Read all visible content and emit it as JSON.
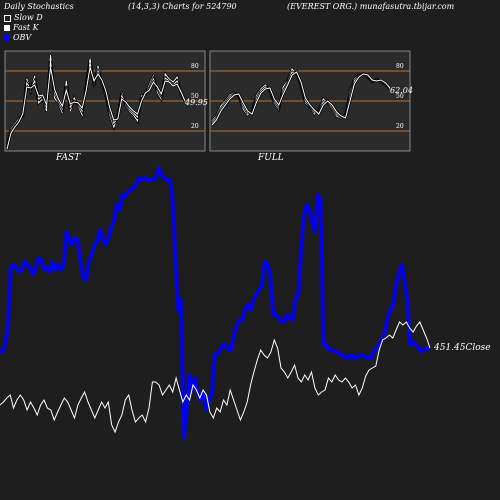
{
  "header": {
    "left": "Daily Stochastics",
    "params": "(14,3,3) Charts for 524790",
    "right": "(EVEREST ORG.) munafasutra.tbijar.com"
  },
  "legend": [
    {
      "label": "Slow  D",
      "swatch": "slow"
    },
    {
      "label": "Fast K",
      "swatch": "fast"
    },
    {
      "label": "OBV",
      "swatch": "obv"
    }
  ],
  "colors": {
    "background": "#1e1e1e",
    "panel": "#2b2b2b",
    "level_line": "#b87333",
    "stoch_line": "#ffffff",
    "obv": "#0000ff",
    "price": "#ffffff"
  },
  "chart_data": [
    {
      "type": "line",
      "panel_label": "FAST",
      "last_value_label": "49.95",
      "levels": [
        20,
        50,
        80
      ],
      "level_labels": [
        "80",
        "50",
        "20"
      ],
      "ylim": [
        0,
        100
      ],
      "series": [
        {
          "values": [
            5,
            22,
            27,
            32,
            35,
            72,
            60,
            75,
            48,
            52,
            40,
            96,
            53,
            48,
            38,
            70,
            40,
            53,
            45,
            36,
            67,
            92,
            65,
            85,
            68,
            55,
            36,
            24,
            35,
            58,
            46,
            40,
            36,
            30,
            55,
            57,
            66,
            75,
            59,
            52,
            77,
            72,
            69,
            74,
            56,
            50
          ]
        },
        {
          "values": [
            3,
            20,
            25,
            30,
            36,
            68,
            62,
            70,
            52,
            55,
            43,
            90,
            58,
            50,
            42,
            65,
            44,
            50,
            47,
            40,
            63,
            88,
            68,
            80,
            70,
            58,
            40,
            28,
            33,
            55,
            48,
            42,
            38,
            34,
            52,
            58,
            63,
            72,
            62,
            55,
            73,
            70,
            66,
            70,
            58,
            50
          ]
        },
        {
          "values": [
            2,
            18,
            24,
            29,
            37,
            64,
            63,
            66,
            55,
            56,
            46,
            84,
            62,
            52,
            45,
            61,
            47,
            49,
            48,
            43,
            60,
            84,
            70,
            77,
            71,
            60,
            43,
            31,
            32,
            52,
            49,
            44,
            40,
            37,
            50,
            58,
            61,
            69,
            64,
            57,
            70,
            69,
            65,
            67,
            59,
            50
          ]
        }
      ]
    },
    {
      "type": "line",
      "panel_label": "FULL",
      "last_value_label": "62.04",
      "levels": [
        20,
        50,
        80
      ],
      "level_labels": [
        "80",
        "50",
        "20"
      ],
      "ylim": [
        0,
        100
      ],
      "series": [
        {
          "values": [
            30,
            35,
            45,
            50,
            56,
            58,
            55,
            42,
            36,
            40,
            55,
            62,
            66,
            60,
            48,
            42,
            64,
            70,
            82,
            77,
            65,
            48,
            44,
            37,
            40,
            52,
            48,
            42,
            35,
            33,
            36,
            58,
            72,
            76,
            76,
            74,
            69,
            72,
            69,
            66,
            62
          ]
        },
        {
          "values": [
            28,
            33,
            42,
            48,
            54,
            57,
            56,
            45,
            38,
            38,
            52,
            60,
            64,
            62,
            50,
            44,
            60,
            68,
            79,
            78,
            67,
            50,
            45,
            39,
            38,
            49,
            49,
            44,
            37,
            34,
            34,
            54,
            70,
            75,
            77,
            75,
            70,
            71,
            70,
            67,
            62
          ]
        },
        {
          "values": [
            26,
            31,
            40,
            46,
            52,
            56,
            57,
            48,
            40,
            37,
            49,
            58,
            62,
            63,
            52,
            46,
            57,
            66,
            76,
            79,
            69,
            53,
            46,
            41,
            37,
            46,
            50,
            46,
            39,
            35,
            33,
            50,
            67,
            74,
            77,
            76,
            71,
            70,
            71,
            68,
            63
          ]
        }
      ]
    },
    {
      "type": "line",
      "close_label": "451.45Close",
      "series": [
        {
          "name": "OBV",
          "values": [
            352,
            352,
            345,
            325,
            268,
            265,
            268,
            272,
            270,
            262,
            265,
            268,
            275,
            267,
            258,
            260,
            270,
            268,
            272,
            262,
            270,
            265,
            270,
            265,
            232,
            240,
            245,
            238,
            240,
            262,
            278,
            280,
            262,
            255,
            245,
            242,
            230,
            240,
            245,
            238,
            228,
            220,
            205,
            210,
            195,
            197,
            192,
            190,
            188,
            185,
            178,
            180,
            178,
            180,
            180,
            180,
            178,
            168,
            175,
            178,
            180,
            180,
            200,
            258,
            312,
            300,
            438,
            410,
            375,
            390,
            378,
            395,
            400,
            392,
            410,
            400,
            395,
            355,
            355,
            350,
            345,
            345,
            350,
            350,
            335,
            325,
            320,
            320,
            310,
            305,
            310,
            300,
            295,
            290,
            285,
            262,
            265,
            275,
            315,
            315,
            318,
            322,
            322,
            315,
            318,
            320,
            298,
            295,
            250,
            215,
            205,
            210,
            222,
            232,
            195,
            200,
            345,
            345,
            350,
            350,
            352,
            352,
            355,
            355,
            358,
            358,
            355,
            358,
            358,
            355,
            355,
            358,
            358,
            358,
            352,
            348,
            345,
            340,
            332,
            318,
            310,
            305,
            285,
            275,
            265,
            280,
            300,
            345,
            342,
            345,
            348,
            352,
            350,
            348,
            350
          ]
        },
        {
          "name": "Close",
          "values": [
            405,
            402,
            398,
            395,
            408,
            400,
            395,
            400,
            410,
            402,
            408,
            415,
            405,
            400,
            408,
            410,
            420,
            412,
            405,
            398,
            402,
            410,
            418,
            405,
            398,
            392,
            402,
            410,
            418,
            410,
            402,
            408,
            402,
            425,
            432,
            422,
            415,
            400,
            395,
            410,
            422,
            418,
            415,
            422,
            408,
            382,
            382,
            385,
            395,
            390,
            385,
            392,
            378,
            390,
            402,
            395,
            400,
            385,
            390,
            398,
            390,
            395,
            412,
            418,
            408,
            412,
            400,
            405,
            390,
            400,
            410,
            420,
            412,
            402,
            385,
            372,
            360,
            350,
            355,
            358,
            352,
            340,
            348,
            368,
            372,
            378,
            372,
            365,
            378,
            382,
            375,
            380,
            372,
            388,
            395,
            392,
            390,
            378,
            382,
            375,
            380,
            382,
            378,
            382,
            388,
            385,
            395,
            388,
            376,
            370,
            368,
            366,
            350,
            340,
            338,
            335,
            338,
            330,
            322,
            325,
            322,
            328,
            332,
            326,
            322,
            330,
            338,
            348
          ]
        }
      ]
    }
  ],
  "panels": {
    "fast_label": "FAST",
    "full_label": "FULL"
  }
}
